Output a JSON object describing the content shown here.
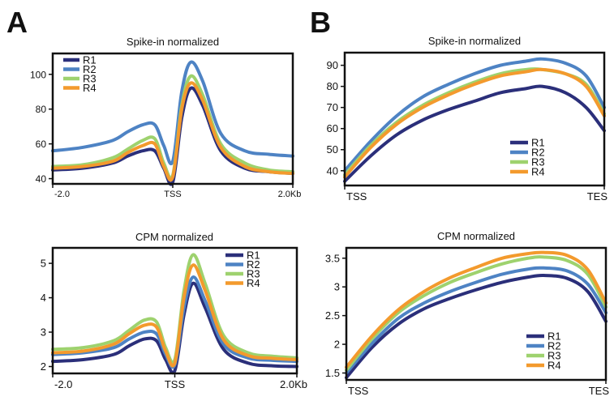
{
  "panel_labels": {
    "a": "A",
    "b": "B"
  },
  "colors": {
    "R1": "#2b2f7a",
    "R2": "#4e83c4",
    "R3": "#9ed26e",
    "R4": "#f39a2d"
  },
  "chart_data": [
    {
      "id": "tl",
      "type": "line",
      "title": "Spike-in normalized",
      "xlabel": "",
      "ylabel": "",
      "x_ticks": [
        {
          "x": -2.0,
          "label": "-2.0"
        },
        {
          "x": 0.0,
          "label": "TSS"
        },
        {
          "x": 2.0,
          "label": "2.0Kb"
        }
      ],
      "xlim": [
        -2.0,
        2.0
      ],
      "ylim": [
        37,
        112
      ],
      "y_ticks": [
        40,
        60,
        80,
        100
      ],
      "legend_position": "top-left",
      "grid": false,
      "series": [
        {
          "name": "R1",
          "color": "#2b2f7a",
          "x": [
            -2.0,
            -1.5,
            -1.0,
            -0.75,
            -0.5,
            -0.3,
            -0.15,
            0.0,
            0.15,
            0.3,
            0.5,
            0.8,
            1.2,
            1.6,
            2.0
          ],
          "y": [
            45,
            46,
            49,
            53,
            56,
            56,
            46,
            38,
            75,
            92,
            82,
            56,
            46,
            44,
            43
          ]
        },
        {
          "name": "R2",
          "color": "#4e83c4",
          "x": [
            -2.0,
            -1.5,
            -1.0,
            -0.75,
            -0.5,
            -0.3,
            -0.15,
            0.0,
            0.15,
            0.3,
            0.5,
            0.8,
            1.2,
            1.6,
            2.0
          ],
          "y": [
            56,
            58,
            62,
            67,
            71,
            71,
            59,
            50,
            90,
            107,
            96,
            66,
            56,
            54,
            53
          ]
        },
        {
          "name": "R3",
          "color": "#9ed26e",
          "x": [
            -2.0,
            -1.5,
            -1.0,
            -0.75,
            -0.5,
            -0.3,
            -0.15,
            0.0,
            0.15,
            0.3,
            0.5,
            0.8,
            1.2,
            1.6,
            2.0
          ],
          "y": [
            47,
            48,
            52,
            57,
            62,
            63,
            49,
            42,
            82,
            99,
            88,
            60,
            49,
            45,
            44
          ]
        },
        {
          "name": "R4",
          "color": "#f39a2d",
          "x": [
            -2.0,
            -1.5,
            -1.0,
            -0.75,
            -0.5,
            -0.3,
            -0.15,
            0.0,
            0.15,
            0.3,
            0.5,
            0.8,
            1.2,
            1.6,
            2.0
          ],
          "y": [
            46,
            47,
            50,
            55,
            59,
            60,
            47,
            41,
            80,
            95,
            85,
            58,
            47,
            44,
            43
          ]
        }
      ]
    },
    {
      "id": "tr",
      "type": "line",
      "title": "Spike-in normalized",
      "xlabel": "",
      "ylabel": "",
      "x_ticks": [
        {
          "x": 0.0,
          "label": "TSS"
        },
        {
          "x": 1.0,
          "label": "TES"
        }
      ],
      "xlim": [
        0.0,
        1.0
      ],
      "ylim": [
        33,
        96
      ],
      "y_ticks": [
        40,
        50,
        60,
        70,
        80,
        90
      ],
      "legend_position": "bottom-right",
      "grid": false,
      "series": [
        {
          "name": "R1",
          "color": "#2b2f7a",
          "x": [
            0.0,
            0.1,
            0.2,
            0.3,
            0.4,
            0.5,
            0.6,
            0.7,
            0.76,
            0.85,
            0.93,
            1.0
          ],
          "y": [
            35,
            47,
            57,
            64,
            69,
            73,
            77,
            79,
            80,
            77,
            70,
            59
          ]
        },
        {
          "name": "R2",
          "color": "#4e83c4",
          "x": [
            0.0,
            0.1,
            0.2,
            0.3,
            0.4,
            0.5,
            0.6,
            0.7,
            0.76,
            0.85,
            0.93,
            1.0
          ],
          "y": [
            40,
            54,
            66,
            75,
            81,
            86,
            90,
            92,
            93,
            91,
            85,
            70
          ]
        },
        {
          "name": "R3",
          "color": "#9ed26e",
          "x": [
            0.0,
            0.1,
            0.2,
            0.3,
            0.4,
            0.5,
            0.6,
            0.7,
            0.76,
            0.85,
            0.93,
            1.0
          ],
          "y": [
            38,
            52,
            63,
            71,
            77,
            82,
            86,
            88,
            88,
            86,
            81,
            67
          ]
        },
        {
          "name": "R4",
          "color": "#f39a2d",
          "x": [
            0.0,
            0.1,
            0.2,
            0.3,
            0.4,
            0.5,
            0.6,
            0.7,
            0.76,
            0.85,
            0.93,
            1.0
          ],
          "y": [
            37,
            51,
            62,
            70,
            76,
            81,
            85,
            87,
            88,
            86,
            80,
            66
          ]
        }
      ]
    },
    {
      "id": "bl",
      "type": "line",
      "title": "CPM normalized",
      "xlabel": "",
      "ylabel": "",
      "x_ticks": [
        {
          "x": -2.0,
          "label": "-2.0"
        },
        {
          "x": 0.0,
          "label": "TSS"
        },
        {
          "x": 2.0,
          "label": "2.0Kb"
        }
      ],
      "xlim": [
        -2.0,
        2.0
      ],
      "ylim": [
        1.8,
        5.45
      ],
      "y_ticks": [
        2,
        3,
        4,
        5
      ],
      "legend_position": "top-right",
      "grid": false,
      "series": [
        {
          "name": "R1",
          "color": "#2b2f7a",
          "x": [
            -2.0,
            -1.5,
            -1.0,
            -0.75,
            -0.5,
            -0.3,
            -0.15,
            0.0,
            0.15,
            0.3,
            0.5,
            0.8,
            1.2,
            1.6,
            2.0
          ],
          "y": [
            2.15,
            2.2,
            2.35,
            2.6,
            2.8,
            2.75,
            2.2,
            1.88,
            3.5,
            4.42,
            3.7,
            2.5,
            2.1,
            2.02,
            2.0
          ]
        },
        {
          "name": "R2",
          "color": "#4e83c4",
          "x": [
            -2.0,
            -1.5,
            -1.0,
            -0.75,
            -0.5,
            -0.3,
            -0.15,
            0.0,
            0.15,
            0.3,
            0.5,
            0.8,
            1.2,
            1.6,
            2.0
          ],
          "y": [
            2.35,
            2.4,
            2.55,
            2.8,
            3.0,
            2.95,
            2.35,
            2.05,
            3.7,
            4.6,
            3.9,
            2.65,
            2.25,
            2.18,
            2.15
          ]
        },
        {
          "name": "R3",
          "color": "#9ed26e",
          "x": [
            -2.0,
            -1.5,
            -1.0,
            -0.75,
            -0.5,
            -0.3,
            -0.15,
            0.0,
            0.15,
            0.3,
            0.5,
            0.8,
            1.2,
            1.6,
            2.0
          ],
          "y": [
            2.5,
            2.55,
            2.75,
            3.05,
            3.35,
            3.3,
            2.55,
            2.2,
            4.2,
            5.25,
            4.4,
            2.9,
            2.4,
            2.3,
            2.25
          ]
        },
        {
          "name": "R4",
          "color": "#f39a2d",
          "x": [
            -2.0,
            -1.5,
            -1.0,
            -0.75,
            -0.5,
            -0.3,
            -0.15,
            0.0,
            0.15,
            0.3,
            0.5,
            0.8,
            1.2,
            1.6,
            2.0
          ],
          "y": [
            2.4,
            2.45,
            2.65,
            2.95,
            3.2,
            3.15,
            2.45,
            2.1,
            4.0,
            4.95,
            4.2,
            2.78,
            2.32,
            2.24,
            2.2
          ]
        }
      ]
    },
    {
      "id": "br",
      "type": "line",
      "title": "CPM normalized",
      "xlabel": "",
      "ylabel": "",
      "x_ticks": [
        {
          "x": 0.0,
          "label": "TSS"
        },
        {
          "x": 1.0,
          "label": "TES"
        }
      ],
      "xlim": [
        0.0,
        1.0
      ],
      "ylim": [
        1.38,
        3.68
      ],
      "y_ticks": [
        1.5,
        2.0,
        2.5,
        3.0,
        3.5
      ],
      "legend_position": "bottom-right",
      "grid": false,
      "series": [
        {
          "name": "R1",
          "color": "#2b2f7a",
          "x": [
            0.0,
            0.1,
            0.2,
            0.3,
            0.4,
            0.5,
            0.6,
            0.7,
            0.76,
            0.85,
            0.93,
            1.0
          ],
          "y": [
            1.42,
            1.95,
            2.35,
            2.62,
            2.8,
            2.95,
            3.08,
            3.17,
            3.2,
            3.15,
            2.92,
            2.4
          ]
        },
        {
          "name": "R2",
          "color": "#4e83c4",
          "x": [
            0.0,
            0.1,
            0.2,
            0.3,
            0.4,
            0.5,
            0.6,
            0.7,
            0.76,
            0.85,
            0.93,
            1.0
          ],
          "y": [
            1.5,
            2.02,
            2.45,
            2.72,
            2.92,
            3.08,
            3.22,
            3.31,
            3.33,
            3.28,
            3.05,
            2.55
          ]
        },
        {
          "name": "R3",
          "color": "#9ed26e",
          "x": [
            0.0,
            0.1,
            0.2,
            0.3,
            0.4,
            0.5,
            0.6,
            0.7,
            0.76,
            0.85,
            0.93,
            1.0
          ],
          "y": [
            1.55,
            2.1,
            2.55,
            2.85,
            3.08,
            3.25,
            3.4,
            3.5,
            3.52,
            3.46,
            3.22,
            2.65
          ]
        },
        {
          "name": "R4",
          "color": "#f39a2d",
          "x": [
            0.0,
            0.1,
            0.2,
            0.3,
            0.4,
            0.5,
            0.6,
            0.7,
            0.76,
            0.85,
            0.93,
            1.0
          ],
          "y": [
            1.6,
            2.15,
            2.6,
            2.92,
            3.16,
            3.34,
            3.5,
            3.58,
            3.6,
            3.55,
            3.3,
            2.72
          ]
        }
      ]
    }
  ]
}
